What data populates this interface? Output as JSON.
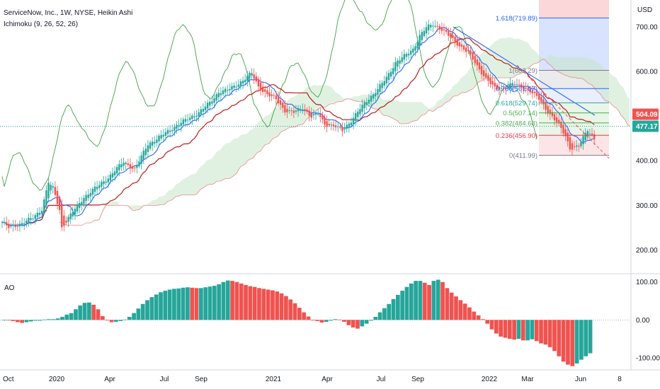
{
  "header": {
    "symbol": "ServiceNow, Inc., 1W, NYSE, Heikin Ashi",
    "indicator": "Ichimoku (9, 26, 52, 26)"
  },
  "price_axis": {
    "currency": "USD",
    "ticks": [
      {
        "value": 700,
        "label": "700.00"
      },
      {
        "value": 600,
        "label": "600.00"
      },
      {
        "value": 500,
        "label": "500.00"
      },
      {
        "value": 400,
        "label": "400.00"
      },
      {
        "value": 300,
        "label": "300.00"
      },
      {
        "value": 200,
        "label": "200.00"
      }
    ],
    "tags": [
      {
        "label": "504.09",
        "value": 504.09,
        "color": "#ef5350"
      },
      {
        "label": "477.17",
        "value": 477.17,
        "color": "#26a69a"
      }
    ]
  },
  "ao_panel": {
    "title": "AO",
    "ticks": [
      {
        "value": 100,
        "label": "100.00"
      },
      {
        "value": 0,
        "label": "0.00"
      },
      {
        "value": -100,
        "label": "-100.00"
      }
    ]
  },
  "time_axis": {
    "labels": [
      "Oct",
      "2020",
      "Apr",
      "Jul",
      "Sep",
      "2021",
      "Apr",
      "Jul",
      "Sep",
      "2022",
      "Mar",
      "Jun",
      "8"
    ]
  },
  "fibonacci": [
    {
      "label": "1.618(719.89)",
      "value": 719.89,
      "color": "#2962ff"
    },
    {
      "label": "1(602.29)",
      "value": 602.29,
      "color": "#787b86"
    },
    {
      "label": "0.786(561.57)",
      "value": 561.57,
      "color": "#2962ff"
    },
    {
      "label": "0.618(529.74)",
      "value": 529.74,
      "color": "#26a69a"
    },
    {
      "label": "0.5(507.14)",
      "value": 507.14,
      "color": "#4caf50"
    },
    {
      "label": "0.382(484.68)",
      "value": 484.68,
      "color": "#4caf50"
    },
    {
      "label": "0.236(456.90)",
      "value": 456.9,
      "color": "#f23645"
    },
    {
      "label": "0(411.99)",
      "value": 411.99,
      "color": "#787b86"
    }
  ],
  "colors": {
    "up": "#26a69a",
    "down": "#ef5350",
    "conversion": "#2962ff",
    "base": "#b71c1c",
    "lagging": "#43a047",
    "cloud": "#c8e6c9",
    "cloud_edge": "#e57373"
  },
  "chart_data": {
    "type": "candlestick",
    "price_range": [
      150,
      760
    ],
    "ao_range": [
      -130,
      120
    ],
    "anchors": [
      [
        0,
        262
      ],
      [
        3,
        250
      ],
      [
        8,
        258
      ],
      [
        14,
        272
      ],
      [
        18,
        292
      ],
      [
        21,
        352
      ],
      [
        23,
        338
      ],
      [
        26,
        290
      ],
      [
        27,
        250
      ],
      [
        30,
        272
      ],
      [
        37,
        318
      ],
      [
        48,
        362
      ],
      [
        55,
        398
      ],
      [
        60,
        380
      ],
      [
        66,
        438
      ],
      [
        70,
        448
      ],
      [
        76,
        470
      ],
      [
        82,
        488
      ],
      [
        89,
        508
      ],
      [
        94,
        530
      ],
      [
        98,
        554
      ],
      [
        102,
        558
      ],
      [
        106,
        570
      ],
      [
        109,
        580
      ],
      [
        113,
        596
      ],
      [
        116,
        566
      ],
      [
        120,
        548
      ],
      [
        124,
        538
      ],
      [
        128,
        512
      ],
      [
        132,
        508
      ],
      [
        136,
        520
      ],
      [
        140,
        498
      ],
      [
        143,
        506
      ],
      [
        146,
        482
      ],
      [
        150,
        478
      ],
      [
        154,
        468
      ],
      [
        158,
        490
      ],
      [
        162,
        516
      ],
      [
        166,
        540
      ],
      [
        170,
        560
      ],
      [
        174,
        586
      ],
      [
        178,
        620
      ],
      [
        182,
        634
      ],
      [
        186,
        650
      ],
      [
        189,
        680
      ],
      [
        192,
        698
      ],
      [
        195,
        706
      ],
      [
        199,
        694
      ],
      [
        203,
        676
      ],
      [
        207,
        658
      ],
      [
        211,
        642
      ],
      [
        215,
        612
      ],
      [
        219,
        584
      ],
      [
        223,
        562
      ],
      [
        227,
        562
      ],
      [
        231,
        572
      ],
      [
        235,
        566
      ],
      [
        239,
        556
      ],
      [
        243,
        538
      ],
      [
        247,
        510
      ],
      [
        251,
        486
      ],
      [
        255,
        456
      ],
      [
        257,
        428
      ],
      [
        261,
        432
      ],
      [
        265,
        470
      ],
      [
        268,
        450
      ]
    ],
    "ao": [
      0,
      -1,
      -3,
      -6,
      -8,
      -6,
      -4,
      -2,
      -2,
      1,
      2,
      2,
      4,
      8,
      14,
      18,
      28,
      38,
      45,
      46,
      40,
      28,
      10,
      0,
      -6,
      -5,
      -3,
      1,
      8,
      18,
      30,
      42,
      52,
      60,
      67,
      73,
      77,
      80,
      82,
      83,
      85,
      86,
      85,
      84,
      84,
      86,
      88,
      90,
      94,
      100,
      104,
      103,
      100,
      96,
      92,
      89,
      87,
      84,
      82,
      80,
      78,
      75,
      70,
      63,
      54,
      44,
      32,
      20,
      9,
      0,
      -3,
      -7,
      -5,
      -2,
      2,
      1,
      -5,
      -14,
      -20,
      -23,
      -17,
      -10,
      -2,
      8,
      20,
      31,
      42,
      55,
      66,
      77,
      87,
      96,
      103,
      103,
      98,
      92,
      103,
      106,
      100,
      84,
      72,
      62,
      52,
      43,
      33,
      22,
      12,
      2,
      -10,
      -25,
      -36,
      -44,
      -47,
      -50,
      -52,
      -50,
      -54,
      -54,
      -51,
      -56,
      -62,
      -65,
      -72,
      -82,
      -96,
      -110,
      -118,
      -122,
      -115,
      -105,
      -96,
      -88
    ]
  }
}
